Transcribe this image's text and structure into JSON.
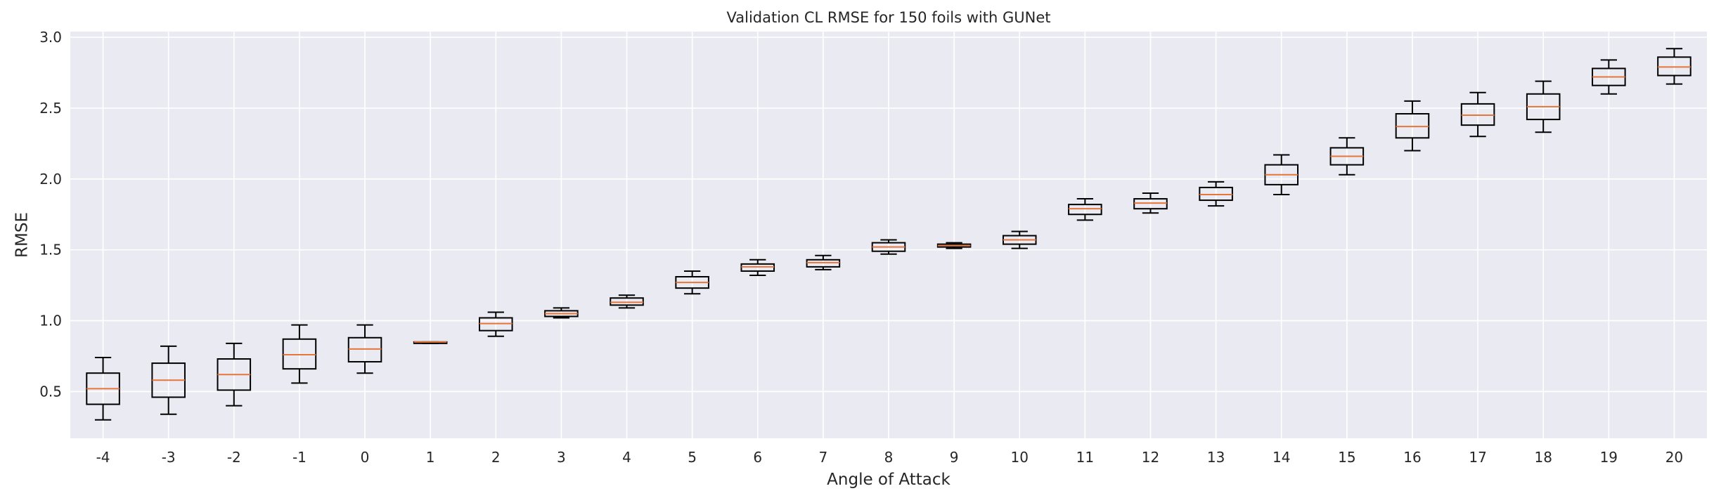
{
  "chart_data": {
    "type": "boxplot",
    "title": "Validation CL RMSE for 150 foils with GUNet",
    "xlabel": "Angle of Attack",
    "ylabel": "RMSE",
    "ylim": [
      0.17,
      3.04
    ],
    "yticks": [
      "0.5",
      "1.0",
      "1.5",
      "2.0",
      "2.5",
      "3.0"
    ],
    "grid": true,
    "categories": [
      "-4",
      "-3",
      "-2",
      "-1",
      "0",
      "1",
      "2",
      "3",
      "4",
      "5",
      "6",
      "7",
      "8",
      "9",
      "10",
      "11",
      "12",
      "13",
      "14",
      "15",
      "16",
      "17",
      "18",
      "19",
      "20"
    ],
    "boxes": [
      {
        "whislo": 0.3,
        "q1": 0.41,
        "med": 0.52,
        "q3": 0.63,
        "whishi": 0.74
      },
      {
        "whislo": 0.34,
        "q1": 0.46,
        "med": 0.58,
        "q3": 0.7,
        "whishi": 0.82
      },
      {
        "whislo": 0.4,
        "q1": 0.51,
        "med": 0.62,
        "q3": 0.73,
        "whishi": 0.84
      },
      {
        "whislo": 0.56,
        "q1": 0.66,
        "med": 0.76,
        "q3": 0.87,
        "whishi": 0.97
      },
      {
        "whislo": 0.63,
        "q1": 0.71,
        "med": 0.8,
        "q3": 0.88,
        "whishi": 0.97
      },
      {
        "whislo": 0.84,
        "q1": 0.84,
        "med": 0.85,
        "q3": 0.85,
        "whishi": 0.85
      },
      {
        "whislo": 0.89,
        "q1": 0.93,
        "med": 0.98,
        "q3": 1.02,
        "whishi": 1.06
      },
      {
        "whislo": 1.02,
        "q1": 1.03,
        "med": 1.05,
        "q3": 1.07,
        "whishi": 1.09
      },
      {
        "whislo": 1.09,
        "q1": 1.11,
        "med": 1.13,
        "q3": 1.16,
        "whishi": 1.18
      },
      {
        "whislo": 1.19,
        "q1": 1.23,
        "med": 1.27,
        "q3": 1.31,
        "whishi": 1.35
      },
      {
        "whislo": 1.32,
        "q1": 1.35,
        "med": 1.38,
        "q3": 1.4,
        "whishi": 1.43
      },
      {
        "whislo": 1.36,
        "q1": 1.38,
        "med": 1.41,
        "q3": 1.43,
        "whishi": 1.46
      },
      {
        "whislo": 1.47,
        "q1": 1.49,
        "med": 1.52,
        "q3": 1.55,
        "whishi": 1.57
      },
      {
        "whislo": 1.51,
        "q1": 1.52,
        "med": 1.53,
        "q3": 1.54,
        "whishi": 1.55
      },
      {
        "whislo": 1.51,
        "q1": 1.54,
        "med": 1.57,
        "q3": 1.6,
        "whishi": 1.63
      },
      {
        "whislo": 1.71,
        "q1": 1.75,
        "med": 1.79,
        "q3": 1.82,
        "whishi": 1.86
      },
      {
        "whislo": 1.76,
        "q1": 1.79,
        "med": 1.83,
        "q3": 1.86,
        "whishi": 1.9
      },
      {
        "whislo": 1.81,
        "q1": 1.85,
        "med": 1.89,
        "q3": 1.94,
        "whishi": 1.98
      },
      {
        "whislo": 1.89,
        "q1": 1.96,
        "med": 2.03,
        "q3": 2.1,
        "whishi": 2.17
      },
      {
        "whislo": 2.03,
        "q1": 2.1,
        "med": 2.16,
        "q3": 2.22,
        "whishi": 2.29
      },
      {
        "whislo": 2.2,
        "q1": 2.29,
        "med": 2.37,
        "q3": 2.46,
        "whishi": 2.55
      },
      {
        "whislo": 2.3,
        "q1": 2.38,
        "med": 2.45,
        "q3": 2.53,
        "whishi": 2.61
      },
      {
        "whislo": 2.33,
        "q1": 2.42,
        "med": 2.51,
        "q3": 2.6,
        "whishi": 2.69
      },
      {
        "whislo": 2.6,
        "q1": 2.66,
        "med": 2.72,
        "q3": 2.78,
        "whishi": 2.84
      },
      {
        "whislo": 2.67,
        "q1": 2.73,
        "med": 2.79,
        "q3": 2.86,
        "whishi": 2.92
      }
    ],
    "colors": {
      "background": "#eaeaf2",
      "grid": "#ffffff",
      "box": "#000000",
      "median": "#e6753b"
    }
  }
}
